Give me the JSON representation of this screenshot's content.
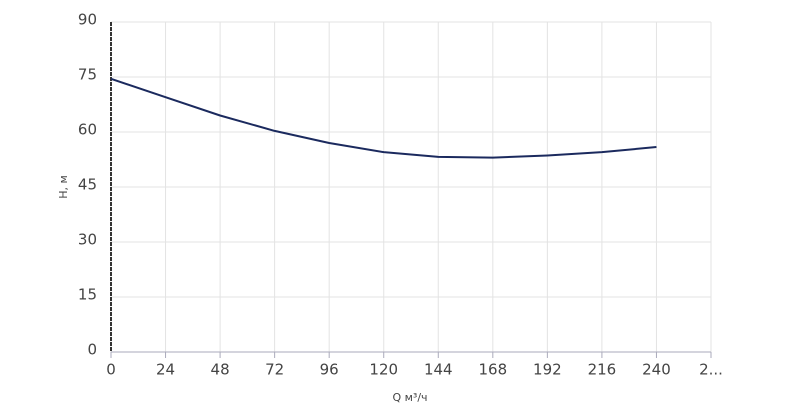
{
  "chart_data": {
    "type": "line",
    "x_label": "Q м³/ч",
    "y_label": "H, м",
    "x": [
      0,
      24,
      48,
      72,
      96,
      120,
      144,
      168,
      192,
      216,
      240
    ],
    "series": [
      {
        "color": "#1b2a5e",
        "values": [
          74.5,
          69.5,
          64.5,
          60.3,
          57,
          54.5,
          53.2,
          53,
          53.6,
          54.5,
          55.9
        ]
      }
    ],
    "xlim": [
      0,
      264
    ],
    "xticks": [
      0,
      24,
      48,
      72,
      96,
      120,
      144,
      168,
      192,
      216,
      240,
      {
        "value": 264,
        "label": "2..."
      }
    ],
    "ylim": [
      0,
      90
    ],
    "yticks": [
      0,
      15,
      30,
      45,
      60,
      75,
      90
    ],
    "grid": true
  }
}
